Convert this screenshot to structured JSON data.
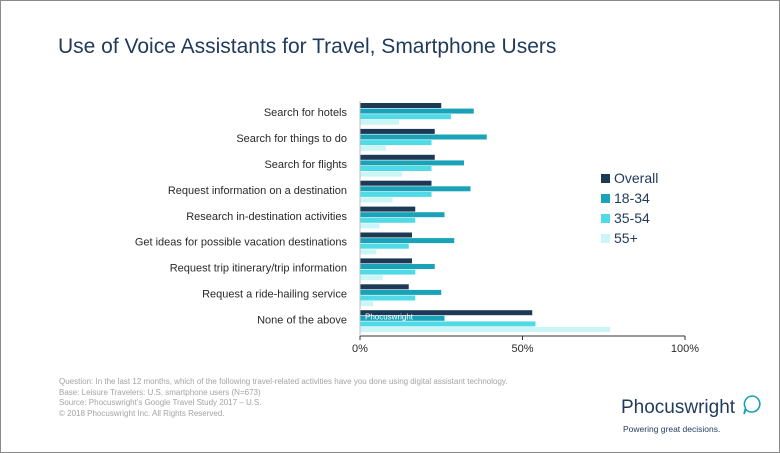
{
  "title": "Use of Voice Assistants for Travel, Smartphone Users",
  "colors": {
    "overall": "#1c3a56",
    "age_18_34": "#1aa3b8",
    "age_35_54": "#4fdae5",
    "age_55_plus": "#cbf5f7",
    "title": "#1f3a5a",
    "axis": "#333333",
    "footnote": "#a4a4a4"
  },
  "chart_data": {
    "type": "bar",
    "orientation": "horizontal",
    "categories": [
      "Search for hotels",
      "Search for things to do",
      "Search for flights",
      "Request information on a destination",
      "Research in-destination activities",
      "Get ideas for possible vacation destinations",
      "Request trip itinerary/trip information",
      "Request a ride-hailing service",
      "None of the above"
    ],
    "series": [
      {
        "name": "Overall",
        "values": [
          25,
          23,
          23,
          22,
          17,
          16,
          16,
          15,
          53
        ]
      },
      {
        "name": "18-34",
        "values": [
          35,
          39,
          32,
          34,
          26,
          29,
          23,
          25,
          26
        ]
      },
      {
        "name": "35-54",
        "values": [
          28,
          22,
          22,
          22,
          17,
          15,
          17,
          17,
          54
        ]
      },
      {
        "name": "55+",
        "values": [
          12,
          8,
          13,
          10,
          6,
          5,
          7,
          4,
          77
        ]
      }
    ],
    "xlim": [
      0,
      100
    ],
    "xticks": [
      "0%",
      "50%",
      "100%"
    ],
    "legend_position": "right",
    "watermark": "Phocuswright"
  },
  "footnotes": [
    "Question: In the last 12 months, which of the following travel-related activities have you done using digital assistant technology.",
    "Base: Leisure Travelers: U.S. smartphone users (N=673)",
    "Source: Phocuswright's Google Travel Study 2017 – U.S.",
    "© 2018 Phocuswright Inc. All Rights Reserved."
  ],
  "logo": {
    "name": "Phocuswright",
    "tagline": "Powering great decisions."
  },
  "icons": {
    "logo_mark": "speech-bubble-icon"
  }
}
